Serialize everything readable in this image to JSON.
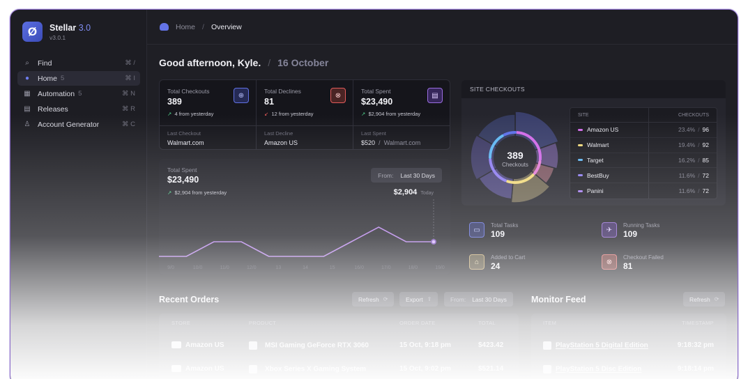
{
  "brand": {
    "name": "Stellar",
    "version_accent": "3.0",
    "subversion": "v3.0.1"
  },
  "nav": [
    {
      "icon": "⌕",
      "label": "Find",
      "count": "",
      "shortcut": "⌘ /"
    },
    {
      "icon": "●",
      "label": "Home",
      "count": "5",
      "shortcut": "⌘ I"
    },
    {
      "icon": "▦",
      "label": "Automation",
      "count": "5",
      "shortcut": "⌘ N"
    },
    {
      "icon": "▤",
      "label": "Releases",
      "count": "",
      "shortcut": "⌘ R"
    },
    {
      "icon": "♙",
      "label": "Account Generator",
      "count": "",
      "shortcut": "⌘ C"
    }
  ],
  "breadcrumb": {
    "home": "Home",
    "sep": "/",
    "current": "Overview"
  },
  "greeting": {
    "text": "Good afternoon, Kyle.",
    "sep": "/",
    "date": "16 October"
  },
  "stats": [
    {
      "label": "Total Checkouts",
      "value": "389",
      "arrow": "↗",
      "delta": "4 from yesterday",
      "sub_label": "Last Checkout",
      "sub_value": "Walmart.com",
      "sub_extra": "",
      "icon": "⊕"
    },
    {
      "label": "Total Declines",
      "value": "81",
      "arrow": "↙",
      "delta": "12 from yesterday",
      "sub_label": "Last Decline",
      "sub_value": "Amazon US",
      "sub_extra": "",
      "icon": "⊗"
    },
    {
      "label": "Total Spent",
      "value": "$23,490",
      "arrow": "↗",
      "delta": "$2,904 from yesterday",
      "sub_label": "Last Spent",
      "sub_value": "$520",
      "sub_extra": "Walmart.com",
      "icon": "▤"
    }
  ],
  "spend": {
    "label": "Total Spent",
    "value": "$23,490",
    "arrow": "↗",
    "delta": "$2,904 from yesterday",
    "range_label": "From:",
    "range_value": "Last 30 Days",
    "today_value": "$2,904",
    "today_label": "Today"
  },
  "chart_data": {
    "type": "line",
    "x": [
      "Oct",
      "Oct",
      "Oct",
      "Oct",
      "Oct",
      "Oct",
      "Oct",
      "Oct",
      "Oct",
      "Oct",
      "Oct"
    ],
    "x_ticks": [
      "9/0",
      "10/0",
      "11/0",
      "12/0",
      "13",
      "14",
      "15",
      "16/0",
      "17/0",
      "18/0",
      "19/0"
    ],
    "values": [
      0,
      0,
      1,
      1,
      0,
      0,
      0,
      1,
      2,
      1,
      1
    ],
    "color": "#b37fe8"
  },
  "site_checkouts": {
    "title": "SITE CHECKOUTS",
    "total": "389",
    "total_label": "Checkouts",
    "col_site": "SITE",
    "col_checkouts": "CHECKOUTS",
    "rows": [
      {
        "site": "Amazon US",
        "pct": "23.4%",
        "count": "96",
        "color": "#d06ae8"
      },
      {
        "site": "Walmart",
        "pct": "19.4%",
        "count": "92",
        "color": "#f0d97a"
      },
      {
        "site": "Target",
        "pct": "16.2%",
        "count": "85",
        "color": "#5fb6f2"
      },
      {
        "site": "BestBuy",
        "pct": "11.6%",
        "count": "72",
        "color": "#8d7cf0"
      },
      {
        "site": "Panini",
        "pct": "11.6%",
        "count": "72",
        "color": "#a47cf0"
      }
    ]
  },
  "tasks": [
    {
      "label": "Total Tasks",
      "value": "109",
      "icon": "▭"
    },
    {
      "label": "Running Tasks",
      "value": "109",
      "icon": "✈"
    },
    {
      "label": "Added to Cart",
      "value": "24",
      "icon": "⌂"
    },
    {
      "label": "Checkout Failed",
      "value": "81",
      "icon": "⊗"
    }
  ],
  "orders": {
    "title": "Recent Orders",
    "refresh": "Refresh",
    "export": "Export",
    "range_label": "From:",
    "range_value": "Last 30 Days",
    "columns": [
      "STORE",
      "PRODUCT",
      "ORDER DATE",
      "TOTAL"
    ],
    "rows": [
      {
        "store": "Amazon US",
        "product": "MSI Gaming GeForce RTX 3060",
        "date": "15 Oct, 9:18 pm",
        "total": "$423.42"
      },
      {
        "store": "Amazon US",
        "product": "Xbox Series X Gaming System",
        "date": "15 Oct, 9:02 pm",
        "total": "$521.14"
      }
    ]
  },
  "monitor": {
    "title": "Monitor Feed",
    "refresh": "Refresh",
    "columns": [
      "ITEM",
      "TIMESTAMP"
    ],
    "rows": [
      {
        "item": "PlayStation 5 Digital Edition",
        "time": "9:18:32 pm"
      },
      {
        "item": "PlayStation 5 Disc Edition",
        "time": "9:18:14 pm"
      }
    ]
  }
}
